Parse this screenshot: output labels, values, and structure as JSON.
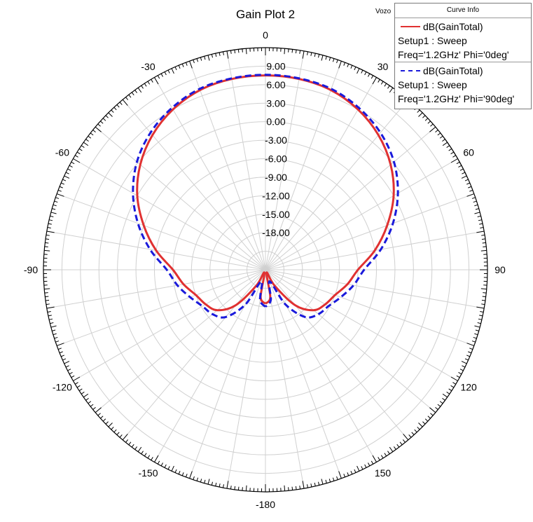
{
  "title": "Gain Plot 2",
  "corner_label": "Vozo",
  "legend": {
    "header": "Curve Info",
    "entries": [
      {
        "name": "dB(GainTotal)",
        "line1": "Setup1 : Sweep",
        "line2": "Freq='1.2GHz' Phi='0deg'",
        "color": "#e03131",
        "style": "solid"
      },
      {
        "name": "dB(GainTotal)",
        "line1": "Setup1 : Sweep",
        "line2": "Freq='1.2GHz' Phi='90deg'",
        "color": "#1a1adb",
        "style": "dashed"
      }
    ]
  },
  "chart_data": {
    "type": "polar",
    "title": "Gain Plot 2",
    "r_min": -24,
    "r_max": 12,
    "r_ticks": [
      "9.00",
      "6.00",
      "3.00",
      "0.00",
      "-3.00",
      "-6.00",
      "-9.00",
      "-12.00",
      "-15.00",
      "-18.00"
    ],
    "theta_labels": [
      "0",
      "30",
      "60",
      "90",
      "120",
      "150",
      "-180",
      "-150",
      "-120",
      "-90",
      "-60",
      "-30"
    ],
    "theta_values": [
      0,
      30,
      60,
      90,
      120,
      150,
      180,
      -150,
      -120,
      -90,
      -60,
      -30
    ],
    "series": [
      {
        "name": "dB(GainTotal)",
        "color": "#e03131",
        "style": "solid",
        "theta": [
          -180,
          -170,
          -160,
          -150,
          -140,
          -130,
          -120,
          -110,
          -100,
          -90,
          -80,
          -70,
          -60,
          -50,
          -40,
          -30,
          -20,
          -10,
          0,
          10,
          20,
          30,
          40,
          50,
          60,
          70,
          80,
          90,
          100,
          110,
          120,
          130,
          140,
          150,
          160,
          170,
          180
        ],
        "r": [
          -18.5,
          -19.5,
          -23.5,
          -21.0,
          -16.5,
          -13.8,
          -12.8,
          -12.0,
          -10.5,
          -9.0,
          -6.0,
          -3.0,
          0.0,
          2.5,
          4.5,
          6.0,
          7.0,
          7.4,
          7.5,
          7.4,
          7.0,
          6.0,
          4.5,
          2.5,
          0.0,
          -3.0,
          -6.0,
          -9.0,
          -10.5,
          -12.0,
          -12.8,
          -13.8,
          -16.5,
          -21.0,
          -23.5,
          -19.5,
          -18.5
        ]
      },
      {
        "name": "dB(GainTotal)",
        "color": "#1a1adb",
        "style": "dashed",
        "theta": [
          -180,
          -170,
          -160,
          -150,
          -140,
          -130,
          -120,
          -110,
          -100,
          -90,
          -80,
          -70,
          -60,
          -50,
          -40,
          -30,
          -20,
          -10,
          0,
          10,
          20,
          30,
          40,
          50,
          60,
          70,
          80,
          90,
          100,
          110,
          120,
          130,
          140,
          150,
          160,
          170,
          180
        ],
        "r": [
          -18.0,
          -19.0,
          -22.0,
          -17.5,
          -14.0,
          -12.8,
          -12.2,
          -11.0,
          -9.5,
          -8.0,
          -5.0,
          -2.0,
          0.8,
          3.2,
          5.0,
          6.3,
          7.2,
          7.5,
          7.6,
          7.5,
          7.2,
          6.3,
          5.0,
          3.2,
          0.8,
          -2.0,
          -5.0,
          -8.0,
          -9.5,
          -11.0,
          -12.2,
          -12.8,
          -14.0,
          -17.5,
          -22.0,
          -19.0,
          -18.0
        ]
      }
    ],
    "grid": true,
    "legend_position": "top-right"
  }
}
